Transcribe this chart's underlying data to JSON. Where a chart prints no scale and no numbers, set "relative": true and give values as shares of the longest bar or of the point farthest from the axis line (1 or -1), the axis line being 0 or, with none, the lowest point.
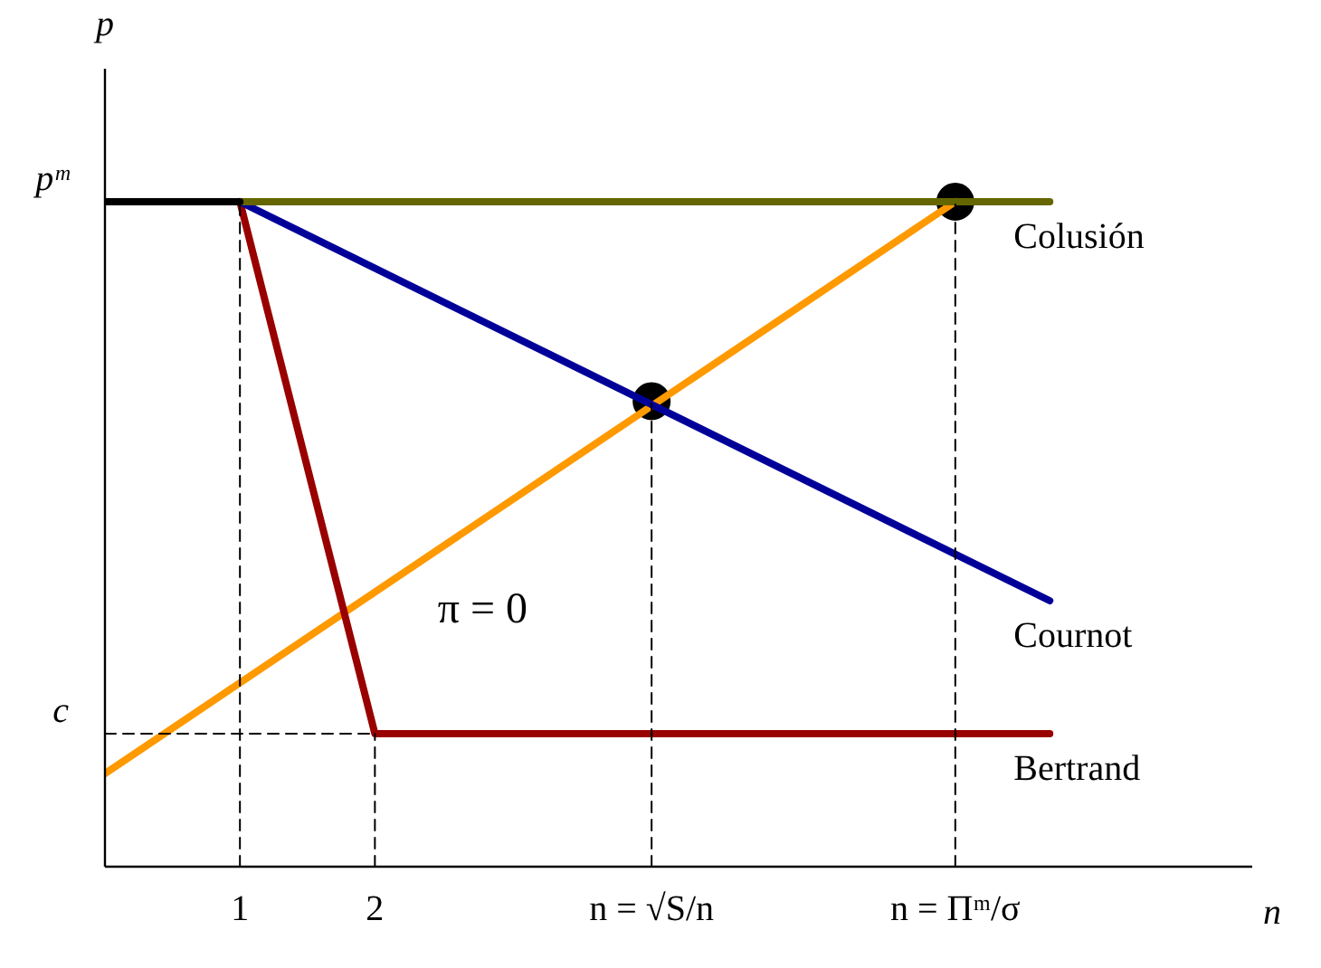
{
  "chart_data": {
    "type": "line",
    "relative": true,
    "xlabel": "n",
    "ylabel": "p",
    "xlim": [
      0,
      8.5
    ],
    "xticks": [
      1,
      2,
      {
        "value": 4.05,
        "label": "n = √S/n"
      },
      {
        "value": 6.3,
        "label": "n = Πᵐ/σ"
      }
    ],
    "grid": false,
    "legend": false,
    "annotations": [
      {
        "text": "pᵐ",
        "x": 0,
        "y": 1
      },
      {
        "text": "c",
        "x": 0,
        "y": 0.2
      },
      "π = 0"
    ],
    "series": [
      {
        "line_style": "dashed",
        "color": "#000000",
        "x": [
          0,
          2
        ],
        "values": [
          0.2,
          0.2
        ]
      },
      {
        "line_style": "dashed",
        "color": "#000000",
        "x": [
          1,
          1
        ],
        "values": [
          0,
          1
        ]
      },
      {
        "line_style": "dashed",
        "color": "#000000",
        "x": [
          2,
          2
        ],
        "values": [
          0,
          0.2
        ]
      },
      {
        "line_style": "dashed",
        "color": "#000000",
        "x": [
          4.05,
          4.05
        ],
        "values": [
          0,
          0.7
        ]
      },
      {
        "line_style": "dashed",
        "color": "#000000",
        "x": [
          6.3,
          6.3
        ],
        "values": [
          0,
          1
        ]
      },
      {
        "color": "#000000",
        "x": [
          0,
          1
        ],
        "values": [
          1,
          1
        ]
      },
      {
        "name": "Colusión",
        "color": "#666600",
        "x": [
          1,
          7
        ],
        "values": [
          1,
          1
        ]
      },
      {
        "name": "Cournot",
        "color": "#000099",
        "x": [
          1,
          7
        ],
        "values": [
          1,
          0.4
        ]
      },
      {
        "name": "Bertrand",
        "color": "#990000",
        "x": [
          1,
          2,
          7
        ],
        "values": [
          1,
          0.2,
          0.2
        ]
      },
      {
        "color": "#ff9900",
        "x": [
          0,
          6.3
        ],
        "values": [
          0.14,
          1
        ]
      },
      {
        "type": "scatter",
        "marker": "circle",
        "color": "#000000",
        "x": [
          4.05,
          6.3
        ],
        "values": [
          0.7,
          1
        ]
      }
    ]
  }
}
